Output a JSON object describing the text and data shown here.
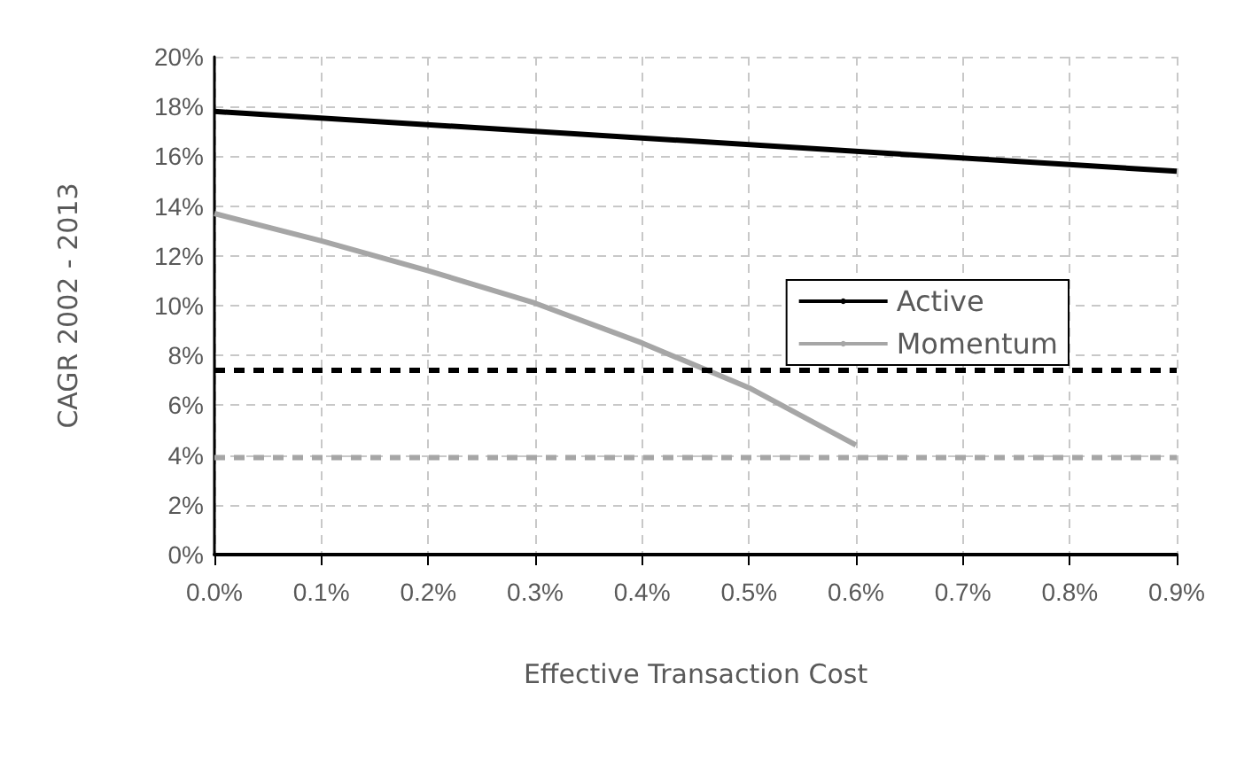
{
  "chart_data": {
    "type": "line",
    "xlabel": "Effective Transaction Cost",
    "ylabel": "CAGR 2002 - 2013",
    "xlim": [
      0,
      0.9
    ],
    "ylim": [
      0,
      20
    ],
    "xticks": [
      {
        "value": 0,
        "label": "0.0%"
      },
      {
        "value": 0.1,
        "label": "0.1%"
      },
      {
        "value": 0.2,
        "label": "0.2%"
      },
      {
        "value": 0.3,
        "label": "0.3%"
      },
      {
        "value": 0.4,
        "label": "0.4%"
      },
      {
        "value": 0.5,
        "label": "0.5%"
      },
      {
        "value": 0.6,
        "label": "0.6%"
      },
      {
        "value": 0.7,
        "label": "0.7%"
      },
      {
        "value": 0.8,
        "label": "0.8%"
      },
      {
        "value": 0.9,
        "label": "0.9%"
      }
    ],
    "yticks": [
      {
        "value": 0,
        "label": "0%"
      },
      {
        "value": 2,
        "label": "2%"
      },
      {
        "value": 4,
        "label": "4%"
      },
      {
        "value": 6,
        "label": "6%"
      },
      {
        "value": 8,
        "label": "8%"
      },
      {
        "value": 10,
        "label": "10%"
      },
      {
        "value": 12,
        "label": "12%"
      },
      {
        "value": 14,
        "label": "14%"
      },
      {
        "value": 16,
        "label": "16%"
      },
      {
        "value": 18,
        "label": "18%"
      },
      {
        "value": 20,
        "label": "20%"
      }
    ],
    "grid": true,
    "legend": "right",
    "marker": "none",
    "series": [
      {
        "name": "Active",
        "color": "#000000",
        "line_style": "solid",
        "x": [
          0,
          0.9
        ],
        "values": [
          17.8,
          15.4
        ]
      },
      {
        "name": "Momentum",
        "color": "#a6a6a6",
        "line_style": "solid",
        "x": [
          0,
          0.1,
          0.2,
          0.3,
          0.4,
          0.5,
          0.6
        ],
        "values": [
          13.7,
          12.6,
          11.4,
          10.1,
          8.5,
          6.7,
          4.4
        ]
      },
      {
        "color": "#000000",
        "line_style": "dashed",
        "x": [
          0,
          0.9
        ],
        "values": [
          7.4,
          7.4
        ]
      },
      {
        "color": "#a6a6a6",
        "line_style": "dashed",
        "x": [
          0,
          0.9
        ],
        "values": [
          3.9,
          3.9
        ]
      }
    ]
  }
}
